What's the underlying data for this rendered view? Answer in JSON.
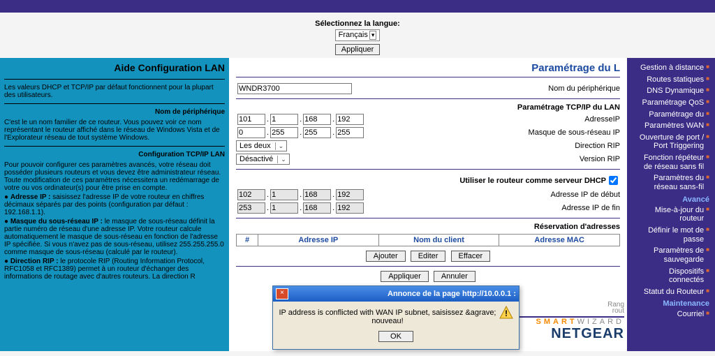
{
  "colors": {
    "purple": "#3b2c85",
    "teal": "#1392bd",
    "link": "#1c4aa0",
    "orange": "#f58a00"
  },
  "lang": {
    "label": "Sélectionnez la langue:",
    "value": "Français",
    "apply": "Appliquer"
  },
  "help": {
    "title": "Aide Configuration LAN",
    "p1": "Les valeurs DHCP et TCP/IP par défaut fonctionnent pour la plupart des utilisateurs.",
    "sub1": "Nom de périphérique",
    "p2": "C'est le un nom familier de ce routeur. Vous pouvez voir ce nom représentant le routeur affiché dans le réseau de Windows Vista et de l'Explorateur réseau de tout système Windows.",
    "sub2": "Configuration TCP/IP LAN",
    "p3": "Pour pouvoir configurer ces paramètres avancés, votre réseau doit posséder plusieurs routeurs et vous devez être administrateur réseau. Toute modification de ces paramètres nécessitera un redémarrage de votre ou vos ordinateur(s) pour être prise en compte.",
    "b1t": "Adresse IP :",
    "b1": "saisissez l'adresse IP de votre routeur en chiffres décimaux séparés par des points (configuration par défaut : 192.168.1.1).",
    "b2t": "Masque du sous-réseau IP :",
    "b2": "le masque de sous-réseau définit la partie numéro de réseau d'une adresse IP. Votre routeur calcule automatiquement le masque de sous-réseau en fonction de l'adresse IP spécifiée. Si vous n'avez pas de sous-réseau, utilisez 255.255.255.0 comme masque de sous-réseau (calculé par le routeur).",
    "b3t": "Direction RIP :",
    "b3": "le protocole RIP (Routing Information Protocol, RFC1058 et RFC1389) permet à un routeur d'échanger des informations de routage avec d'autres routeurs. La direction R"
  },
  "form": {
    "title": "Paramétrage du L",
    "device_label": "Nom du périphérique",
    "device_value": "WNDR3700",
    "tcpip_label": "Paramétrage TCP/IP du LAN",
    "ip_label": "AdresseIP",
    "ip": [
      "192",
      "168",
      "1",
      "101"
    ],
    "mask_label": "Masque de sous-réseau IP",
    "mask": [
      "255",
      "255",
      "255",
      "0"
    ],
    "ripdir_label": "Direction RIP",
    "ripdir_val": "Les deux",
    "ripver_label": "Version RIP",
    "ripver_val": "Désactivé",
    "dhcp_chk": "Utiliser le routeur comme serveur DHCP",
    "start_label": "Adresse IP de début",
    "start": [
      "192",
      "168",
      "1",
      "102"
    ],
    "end_label": "Adresse IP de fin",
    "end": [
      "192",
      "168",
      "1",
      "253"
    ],
    "resv": "Réservation d'adresses",
    "cols": {
      "n": "#",
      "ip": "Adresse IP",
      "name": "Nom du client",
      "mac": "Adresse MAC"
    },
    "btns": {
      "add": "Ajouter",
      "edit": "Editer",
      "del": "Effacer",
      "apply": "Appliquer",
      "cancel": "Annuler"
    }
  },
  "nav": {
    "items": [
      "Gestion à distance",
      "Routes statiques",
      "DNS Dynamique",
      "Paramétrage QoS",
      "Paramétrage du",
      "Paramètres WAN",
      "Ouverture de port /\nPort Triggering",
      "Fonction répéteur\nde réseau sans fil",
      "Paramètres du\nréseau sans-fil"
    ],
    "cat": "Avancé",
    "items2": [
      "Mise-à-jour du\nrouteur",
      "Définir le mot de\npasse",
      "Paramètres de\nsauvegarde",
      "Dispositifs\nconnectés",
      "Statut du Routeur"
    ],
    "cat2": "Maintenance",
    "items3": [
      "Courriel"
    ]
  },
  "brand": {
    "name": "NETGEAR",
    "sw1": "SMART",
    "sw2": "WIZARD",
    "router": "Rang",
    "rout2": "rout"
  },
  "alert": {
    "title": "Annonce de la page http://10.0.0.1 :",
    "msg": "IP address is conflicted with WAN IP subnet, saisissez &agrave; nouveau!",
    "ok": "OK"
  }
}
